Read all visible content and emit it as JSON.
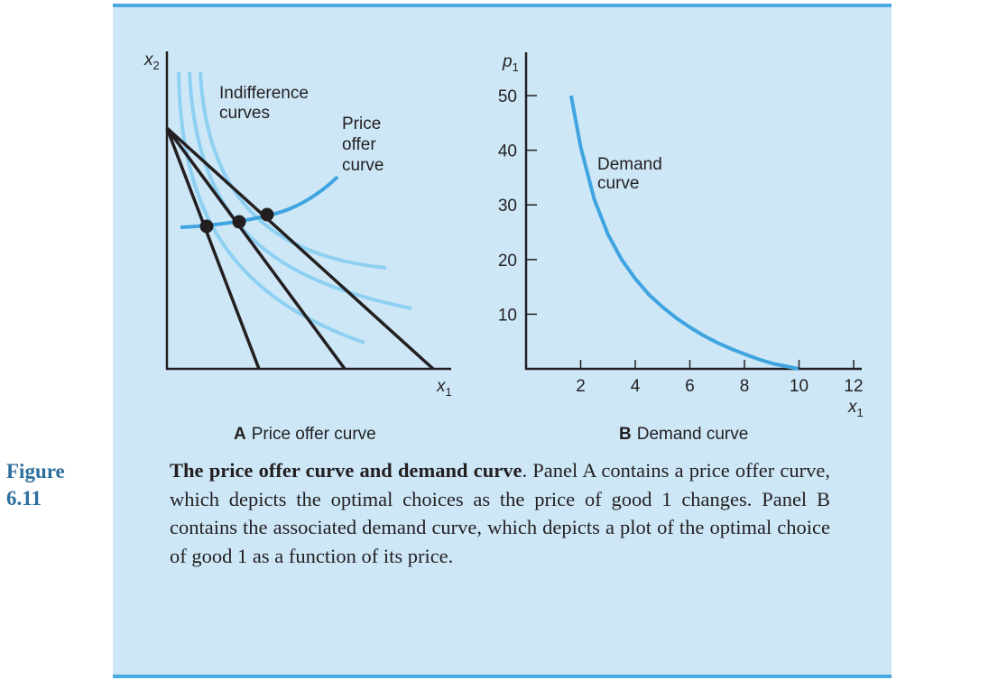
{
  "figure": {
    "label_word": "Figure",
    "label_number": "6.11",
    "caption_title": "The price offer curve and demand curve",
    "caption_body": ". Panel A contains a price offer curve, which depicts the optimal choices as the price of good 1 changes. Panel B contains the associated demand curve, which depicts a plot of the optimal choice of good 1 as a function of its price."
  },
  "colors": {
    "background": "#cde7f7",
    "rule": "#4aa8e2",
    "offer_curve": "#3fa4e0",
    "indifference": "#8dd0f2",
    "budget": "#231f20",
    "label_blue": "#2d6e9e"
  },
  "panel_a": {
    "panel_letter": "A",
    "panel_title": "Price offer curve",
    "y_axis_label": "x",
    "y_axis_sub": "2",
    "x_axis_label": "x",
    "x_axis_sub": "1",
    "indiff_label_1": "Indifference",
    "indiff_label_2": "curves",
    "offer_label_1": "Price",
    "offer_label_2": "offer",
    "offer_label_3": "curve"
  },
  "chart_data": {
    "type": "line",
    "title": "Demand curve",
    "panel_letter": "B",
    "ylabel": "p",
    "ylabel_sub": "1",
    "xlabel": "x",
    "xlabel_sub": "1",
    "xlim": [
      0,
      12
    ],
    "ylim": [
      0,
      50
    ],
    "x_ticks": [
      2,
      4,
      6,
      8,
      10,
      12
    ],
    "y_ticks": [
      10,
      20,
      30,
      40,
      50
    ],
    "series": [
      {
        "name": "Demand curve",
        "label_line_1": "Demand",
        "label_line_2": "curve",
        "color": "#3fa4e0",
        "x": [
          1.65,
          2.0,
          2.5,
          3.0,
          3.5,
          4.0,
          4.5,
          5.0,
          5.5,
          6.0,
          6.5,
          7.0,
          7.5,
          8.0,
          8.5,
          9.0,
          9.5,
          10.0
        ],
        "y": [
          50.0,
          40.6,
          31.0,
          24.6,
          20.0,
          16.5,
          13.6,
          11.3,
          9.3,
          7.6,
          6.1,
          4.8,
          3.7,
          2.7,
          1.8,
          1.0,
          0.5,
          0.0
        ]
      }
    ]
  }
}
